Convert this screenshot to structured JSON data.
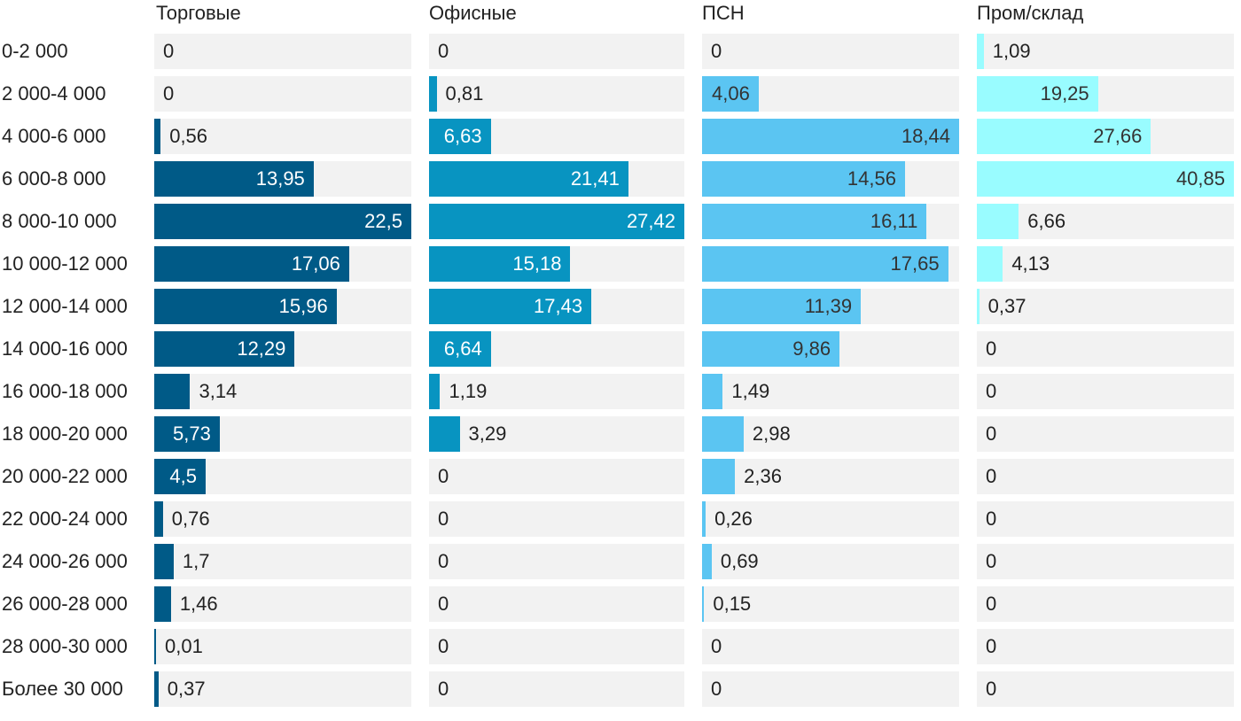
{
  "chart_data": {
    "type": "bar",
    "orientation": "horizontal",
    "layout": "small-multiples",
    "categories": [
      "0-2 000",
      "2 000-4 000",
      "4 000-6 000",
      "6 000-8 000",
      "8 000-10 000",
      "10 000-12 000",
      "12 000-14 000",
      "14 000-16 000",
      "16 000-18 000",
      "18 000-20 000",
      "20 000-22 000",
      "22 000-24 000",
      "24 000-26 000",
      "26 000-28 000",
      "28 000-30 000",
      "Более 30 000"
    ],
    "series": [
      {
        "name": "Торговые",
        "color": "#005a87",
        "label_color": "#ffffff",
        "values": [
          0,
          0,
          0.56,
          13.95,
          22.5,
          17.06,
          15.96,
          12.29,
          3.14,
          5.73,
          4.5,
          0.76,
          1.7,
          1.46,
          0.01,
          0.37
        ],
        "labels": [
          "0",
          "0",
          "0,56",
          "13,95",
          "22,5",
          "17,06",
          "15,96",
          "12,29",
          "3,14",
          "5,73",
          "4,5",
          "0,76",
          "1,7",
          "1,46",
          "0,01",
          "0,37"
        ],
        "xlim": [
          0,
          22.5
        ]
      },
      {
        "name": "Офисные",
        "color": "#0894c1",
        "label_color": "#ffffff",
        "values": [
          0,
          0.81,
          6.63,
          21.41,
          27.42,
          15.18,
          17.43,
          6.64,
          1.19,
          3.29,
          0,
          0,
          0,
          0,
          0,
          0
        ],
        "labels": [
          "0",
          "0,81",
          "6,63",
          "21,41",
          "27,42",
          "15,18",
          "17,43",
          "6,64",
          "1,19",
          "3,29",
          "0",
          "0",
          "0",
          "0",
          "0",
          "0"
        ],
        "xlim": [
          0,
          27.42
        ]
      },
      {
        "name": "ПСН",
        "color": "#5bc5f2",
        "label_color": "#333333",
        "values": [
          0,
          4.06,
          18.44,
          14.56,
          16.11,
          17.65,
          11.39,
          9.86,
          1.49,
          2.98,
          2.36,
          0.26,
          0.69,
          0.15,
          0,
          0
        ],
        "labels": [
          "0",
          "4,06",
          "18,44",
          "14,56",
          "16,11",
          "17,65",
          "11,39",
          "9,86",
          "1,49",
          "2,98",
          "2,36",
          "0,26",
          "0,69",
          "0,15",
          "0",
          "0"
        ],
        "xlim": [
          0,
          18.44
        ]
      },
      {
        "name": "Пром/склад",
        "color": "#99fcff",
        "label_color": "#333333",
        "values": [
          1.09,
          19.25,
          27.66,
          40.85,
          6.66,
          4.13,
          0.37,
          0,
          0,
          0,
          0,
          0,
          0,
          0,
          0,
          0
        ],
        "labels": [
          "1,09",
          "19,25",
          "27,66",
          "40,85",
          "6,66",
          "4,13",
          "0,37",
          "0",
          "0",
          "0",
          "0",
          "0",
          "0",
          "0",
          "0",
          "0"
        ],
        "xlim": [
          0,
          40.85
        ]
      }
    ],
    "title": "",
    "xlabel": "",
    "ylabel": "",
    "grid": false,
    "legend": "none"
  }
}
